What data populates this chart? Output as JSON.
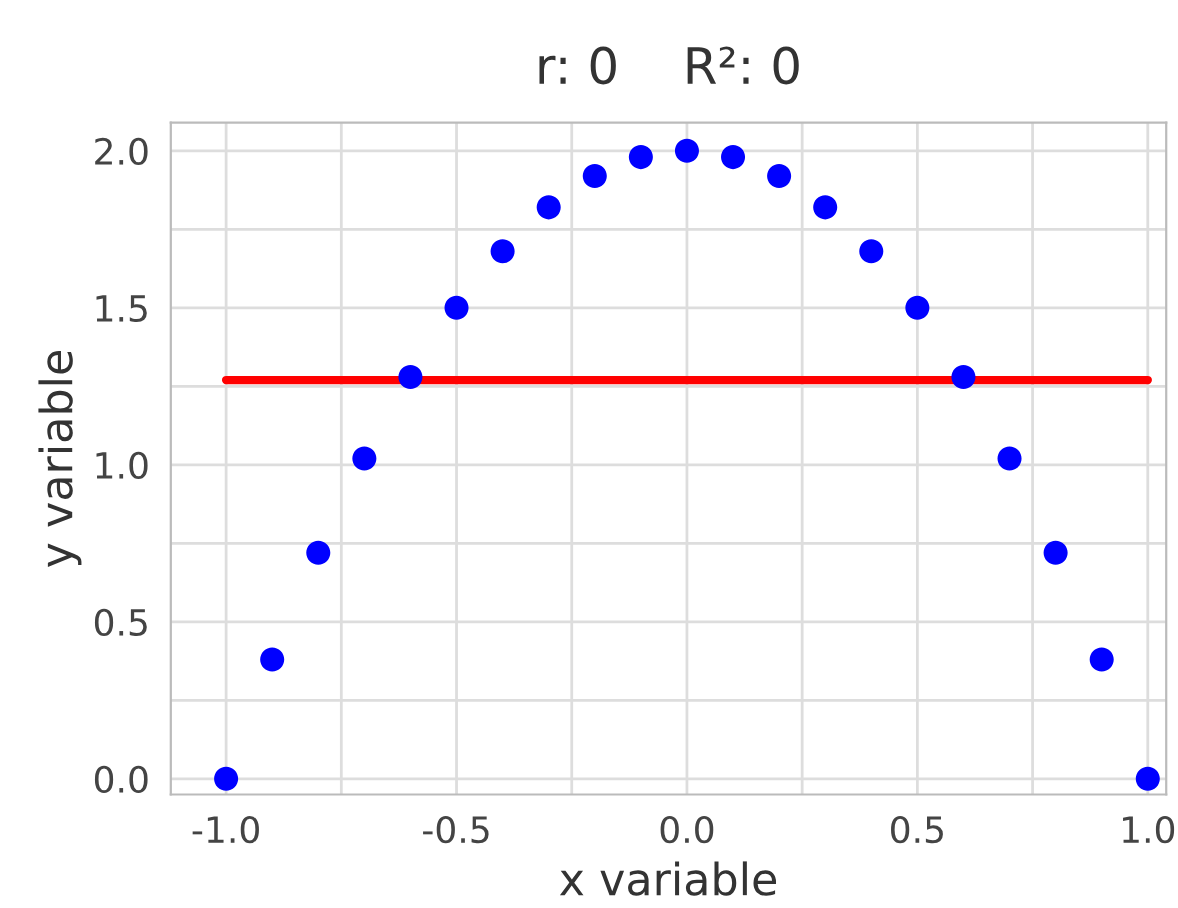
{
  "chart_data": {
    "type": "scatter",
    "title": "r: 0    R²: 0",
    "xlabel": "x variable",
    "ylabel": "y variable",
    "xlim": [
      -1.12,
      1.04
    ],
    "ylim": [
      -0.05,
      2.09
    ],
    "xticks": [
      {
        "value": -1.0,
        "label": "-1.0"
      },
      {
        "value": -0.75,
        "label": null
      },
      -0.5,
      {
        "value": -0.25,
        "label": null
      },
      {
        "value": 0.0,
        "label": "0.0"
      },
      {
        "value": 0.25,
        "label": null
      },
      0.5,
      {
        "value": 0.75,
        "label": null
      },
      {
        "value": 1.0,
        "label": "1.0"
      }
    ],
    "yticks": [
      {
        "value": 0.0,
        "label": "0.0"
      },
      {
        "value": 0.25,
        "label": null
      },
      0.5,
      {
        "value": 0.75,
        "label": null
      },
      {
        "value": 1.0,
        "label": "1.0"
      },
      {
        "value": 1.25,
        "label": null
      },
      1.5,
      {
        "value": 1.75,
        "label": null
      },
      {
        "value": 2.0,
        "label": "2.0"
      }
    ],
    "grid": true,
    "series": [
      {
        "marker": "circle",
        "color": "#0000ff",
        "x": [
          -1.0,
          -0.9,
          -0.8,
          -0.7,
          -0.6,
          -0.5,
          -0.4,
          -0.3,
          -0.2,
          -0.1,
          0.0,
          0.1,
          0.2,
          0.3,
          0.4,
          0.5,
          0.6,
          0.7,
          0.8,
          0.9,
          1.0
        ],
        "values": [
          0.0,
          0.38,
          0.72,
          1.02,
          1.28,
          1.5,
          1.68,
          1.82,
          1.92,
          1.98,
          2.0,
          1.98,
          1.92,
          1.82,
          1.68,
          1.5,
          1.28,
          1.02,
          0.72,
          0.38,
          0.0
        ]
      },
      {
        "type": "line",
        "color": "#ff0000",
        "x": [
          -1.0,
          1.0
        ],
        "values": [
          1.27,
          1.27
        ]
      }
    ]
  }
}
